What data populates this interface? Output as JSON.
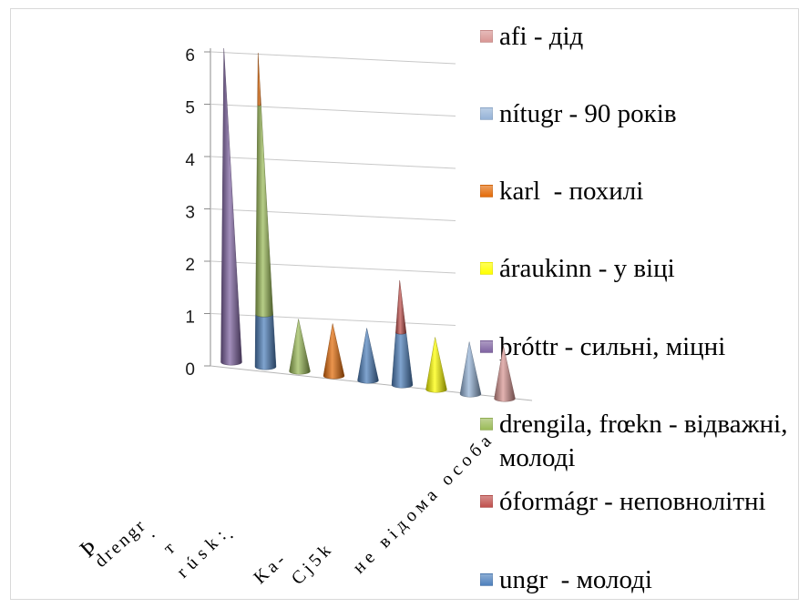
{
  "chart_data": {
    "type": "bar",
    "shape": "cone",
    "stacked": true,
    "categories": [
      "Þ",
      "drengr",
      ".",
      "т",
      "rúsk:",
      ".",
      "Ka-",
      "Cj5k",
      "не відома особа"
    ],
    "series": [
      {
        "name": "afi - дід",
        "color": "#D99694",
        "values": [
          0,
          0,
          0,
          0,
          0,
          0,
          0,
          0,
          1
        ]
      },
      {
        "name": "nítugr - 90 років",
        "color": "#95B3D7",
        "values": [
          0,
          0,
          0,
          0,
          0,
          0,
          0,
          1,
          0
        ]
      },
      {
        "name": "karl  - похилі",
        "color": "#E46C0A",
        "values": [
          0,
          1,
          0,
          1,
          0,
          0,
          0,
          0,
          0
        ]
      },
      {
        "name": "áraukinn - у віці",
        "color": "#FFFF00",
        "values": [
          0,
          0,
          0,
          0,
          0,
          0,
          1,
          0,
          0
        ]
      },
      {
        "name": "þróttr - сильні, міцні",
        "color": "#8064A2",
        "values": [
          6,
          0,
          0,
          0,
          0,
          0,
          0,
          0,
          0
        ]
      },
      {
        "name": "drengila, frœkn - відважні, молоді",
        "color": "#9BBB59",
        "values": [
          0,
          4,
          1,
          0,
          0,
          0,
          0,
          0,
          0
        ]
      },
      {
        "name": "óformágr - неповнолітні",
        "color": "#C0504D",
        "values": [
          0,
          0,
          0,
          0,
          0,
          1,
          0,
          0,
          0
        ]
      },
      {
        "name": "ungr  - молоді",
        "color": "#4F81BD",
        "values": [
          0,
          1,
          0,
          0,
          1,
          1,
          0,
          0,
          0
        ]
      }
    ],
    "ylim": [
      0,
      6
    ],
    "yticks": [
      0,
      1,
      2,
      3,
      4,
      5,
      6
    ],
    "grid": true,
    "legend": "right"
  }
}
